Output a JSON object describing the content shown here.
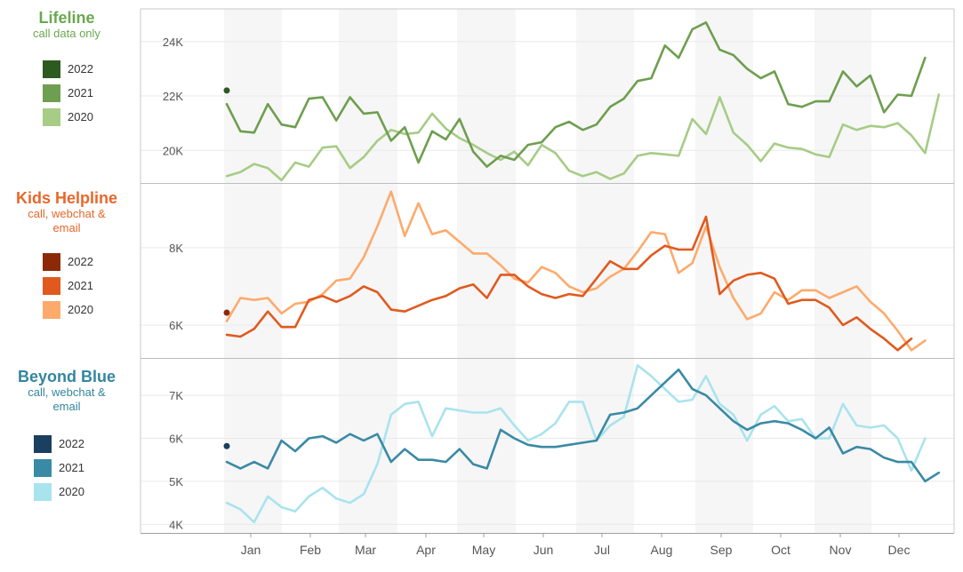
{
  "chart_data": [
    {
      "type": "line",
      "title": "Lifeline",
      "subtitle": "call data only",
      "ylim": [
        18800,
        25200
      ],
      "yticks": [
        {
          "value": 20000,
          "label": "20K"
        },
        {
          "value": 22000,
          "label": "22K"
        },
        {
          "value": 24000,
          "label": "24K"
        }
      ],
      "series": [
        {
          "name": "2022",
          "color": "#2d5a1f",
          "values": [
            22200
          ]
        },
        {
          "name": "2021",
          "color": "#6e9e4f",
          "values": [
            21700,
            20700,
            20650,
            21700,
            20950,
            20850,
            21900,
            21950,
            21100,
            21950,
            21350,
            21400,
            20350,
            20850,
            19550,
            20700,
            20400,
            21150,
            19950,
            19400,
            19800,
            19650,
            20200,
            20300,
            20850,
            21050,
            20750,
            20950,
            21600,
            21900,
            22550,
            22650,
            23850,
            23400,
            24450,
            24700,
            23700,
            23500,
            23000,
            22650,
            22900,
            21700,
            21600,
            21800,
            21800,
            22900,
            22350,
            22750,
            21400,
            22050,
            22000,
            23400
          ]
        },
        {
          "name": "2020",
          "color": "#a6cc86",
          "values": [
            19050,
            19200,
            19500,
            19350,
            18900,
            19550,
            19400,
            20100,
            20150,
            19350,
            19750,
            20350,
            20750,
            20600,
            20650,
            21350,
            20800,
            20450,
            20200,
            19900,
            19650,
            19950,
            19450,
            20200,
            19900,
            19250,
            19050,
            19200,
            18950,
            19150,
            19800,
            19900,
            19850,
            19800,
            21150,
            20600,
            21950,
            20650,
            20200,
            19600,
            20250,
            20100,
            20050,
            19850,
            19750,
            20950,
            20750,
            20900,
            20850,
            21000,
            20550,
            19900,
            22050
          ]
        }
      ]
    },
    {
      "type": "line",
      "title": "Kids Helpline",
      "subtitle": "call, webchat & email",
      "ylim": [
        5150,
        9650
      ],
      "yticks": [
        {
          "value": 6000,
          "label": "6K"
        },
        {
          "value": 8000,
          "label": "8K"
        }
      ],
      "series": [
        {
          "name": "2022",
          "color": "#8c2a08",
          "values": [
            6320
          ]
        },
        {
          "name": "2021",
          "color": "#e05a1e",
          "values": [
            5750,
            5700,
            5900,
            6350,
            5950,
            5950,
            6650,
            6750,
            6600,
            6750,
            7000,
            6850,
            6400,
            6350,
            6500,
            6650,
            6750,
            6950,
            7050,
            6700,
            7300,
            7300,
            7000,
            6800,
            6700,
            6800,
            6750,
            7200,
            7650,
            7450,
            7450,
            7800,
            8050,
            7950,
            7950,
            8800,
            6800,
            7150,
            7300,
            7350,
            7200,
            6550,
            6650,
            6650,
            6450,
            6000,
            6200,
            5900,
            5650,
            5350,
            5650
          ]
        },
        {
          "name": "2020",
          "color": "#fdaa6c",
          "values": [
            6100,
            6700,
            6650,
            6700,
            6300,
            6550,
            6600,
            6800,
            7150,
            7200,
            7750,
            8550,
            9450,
            8300,
            9150,
            8350,
            8450,
            8150,
            7850,
            7850,
            7550,
            7200,
            7100,
            7500,
            7350,
            7000,
            6850,
            6950,
            7250,
            7450,
            7900,
            8400,
            8350,
            7350,
            7600,
            8550,
            7500,
            6700,
            6150,
            6300,
            6850,
            6650,
            6900,
            6900,
            6700,
            6850,
            7000,
            6600,
            6300,
            5850,
            5350,
            5600
          ]
        }
      ]
    },
    {
      "type": "line",
      "title": "Beyond Blue",
      "subtitle": "call, webchat & email",
      "ylim": [
        3800,
        7850
      ],
      "yticks": [
        {
          "value": 4000,
          "label": "4K"
        },
        {
          "value": 5000,
          "label": "5K"
        },
        {
          "value": 6000,
          "label": "6K"
        },
        {
          "value": 7000,
          "label": "7K"
        }
      ],
      "series": [
        {
          "name": "2022",
          "color": "#1b3f5e",
          "values": [
            5820
          ]
        },
        {
          "name": "2021",
          "color": "#3a8aa5",
          "values": [
            5450,
            5300,
            5450,
            5300,
            5950,
            5700,
            6000,
            6050,
            5900,
            6100,
            5950,
            6100,
            5450,
            5750,
            5500,
            5500,
            5450,
            5750,
            5400,
            5300,
            6200,
            6000,
            5850,
            5800,
            5800,
            5850,
            5900,
            5950,
            6550,
            6600,
            6700,
            7000,
            7300,
            7600,
            7150,
            7000,
            6700,
            6400,
            6200,
            6350,
            6400,
            6350,
            6200,
            6000,
            6250,
            5650,
            5800,
            5750,
            5550,
            5450,
            5450,
            5000,
            5200
          ]
        },
        {
          "name": "2020",
          "color": "#a9e3ee",
          "values": [
            4500,
            4350,
            4050,
            4650,
            4400,
            4300,
            4650,
            4850,
            4600,
            4500,
            4700,
            5400,
            6550,
            6800,
            6850,
            6050,
            6700,
            6650,
            6600,
            6600,
            6700,
            6300,
            5950,
            6100,
            6350,
            6850,
            6850,
            5950,
            6300,
            6500,
            7700,
            7450,
            7150,
            6850,
            6900,
            7450,
            6800,
            6550,
            5950,
            6550,
            6750,
            6400,
            6450,
            6000,
            6000,
            6800,
            6300,
            6250,
            6300,
            6000,
            5250,
            6000
          ]
        }
      ]
    }
  ],
  "x_axis": {
    "months": [
      "Jan",
      "Feb",
      "Mar",
      "Apr",
      "May",
      "Jun",
      "Jul",
      "Aug",
      "Sep",
      "Oct",
      "Nov",
      "Dec"
    ]
  },
  "legend_labels": [
    "2022",
    "2021",
    "2020"
  ],
  "colors": {
    "lifeline": "#6aa84f",
    "kids": "#e8672a",
    "beyond": "#33869e",
    "grid": "#e9e9e9",
    "band": "#f6f6f6",
    "axis_text": "#555555"
  }
}
